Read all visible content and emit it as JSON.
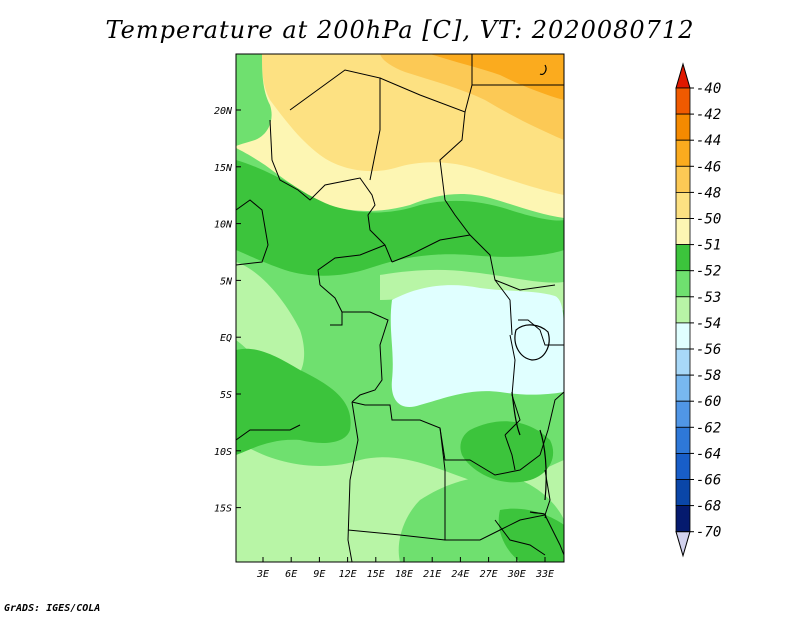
{
  "title": "Temperature at 200hPa [C], VT: 2020080712",
  "credit": "GrADS: IGES/COLA",
  "map": {
    "lon_ticks": [
      "3E",
      "6E",
      "9E",
      "12E",
      "15E",
      "18E",
      "21E",
      "24E",
      "27E",
      "30E",
      "33E"
    ],
    "lat_ticks": [
      "20N",
      "15N",
      "10N",
      "5N",
      "EQ",
      "5S",
      "10S",
      "15S"
    ]
  },
  "legend": {
    "labels": [
      "-40",
      "-42",
      "-44",
      "-46",
      "-48",
      "-50",
      "-51",
      "-52",
      "-53",
      "-54",
      "-56",
      "-58",
      "-60",
      "-62",
      "-64",
      "-66",
      "-68",
      "-70"
    ],
    "colors": [
      "#e01800",
      "#f05a00",
      "#f58a00",
      "#fbab1e",
      "#fcc955",
      "#fde182",
      "#fdf6b3",
      "#3cc43c",
      "#6fe06f",
      "#b8f5a6",
      "#e0ffff",
      "#a8d8f8",
      "#78b8f0",
      "#5096e6",
      "#2e78d8",
      "#185ec8",
      "#0a46a8",
      "#051a6e"
    ],
    "low_color": "#d2d2ee"
  }
}
